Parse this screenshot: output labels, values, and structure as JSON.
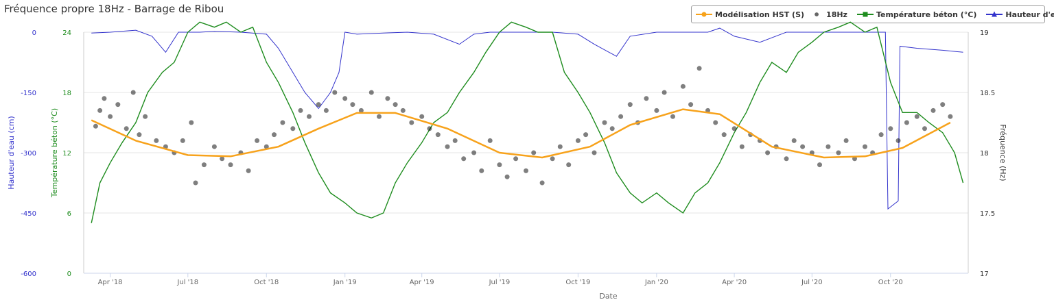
{
  "chart_data": {
    "type": "line",
    "title": "Fréquence propre 18Hz - Barrage de Ribou",
    "xlabel": "Date",
    "x_ticks": [
      "Apr '18",
      "Jul '18",
      "Oct '18",
      "Jan '19",
      "Apr '19",
      "Jul '19",
      "Oct '19",
      "Jan '20",
      "Apr '20",
      "Jul '20",
      "Oct '20"
    ],
    "x_range": [
      "2018-03-01",
      "2020-12-31"
    ],
    "axes": {
      "water": {
        "label": "Hauteur d'eau (cm)",
        "color": "#3333cc",
        "range": [
          -600,
          0
        ],
        "ticks": [
          "0",
          "-150",
          "-300",
          "-450",
          "-600"
        ]
      },
      "temp": {
        "label": "Température béton (°C)",
        "color": "#1e8c1e",
        "range": [
          0,
          24
        ],
        "ticks": [
          "24",
          "18",
          "12",
          "6",
          "0"
        ]
      },
      "freq": {
        "label": "Fréquence (Hz)",
        "color": "#333333",
        "range": [
          17,
          19
        ],
        "ticks": [
          "19",
          "18.5",
          "18",
          "17.5",
          "17"
        ]
      }
    },
    "grid": true,
    "legend_position": "top-right",
    "series": [
      {
        "name": "Modélisation HST (S)",
        "type": "line",
        "axis": "freq",
        "color": "#f7a21b",
        "points": [
          [
            "2018-03-10",
            18.27
          ],
          [
            "2018-05-01",
            18.1
          ],
          [
            "2018-07-01",
            17.98
          ],
          [
            "2018-08-20",
            17.97
          ],
          [
            "2018-10-15",
            18.05
          ],
          [
            "2018-12-01",
            18.2
          ],
          [
            "2019-01-15",
            18.33
          ],
          [
            "2019-03-01",
            18.33
          ],
          [
            "2019-05-01",
            18.2
          ],
          [
            "2019-07-01",
            18.0
          ],
          [
            "2019-08-20",
            17.96
          ],
          [
            "2019-10-15",
            18.05
          ],
          [
            "2019-12-01",
            18.23
          ],
          [
            "2020-02-01",
            18.36
          ],
          [
            "2020-03-15",
            18.32
          ],
          [
            "2020-05-15",
            18.05
          ],
          [
            "2020-07-15",
            17.96
          ],
          [
            "2020-09-01",
            17.97
          ],
          [
            "2020-10-15",
            18.04
          ],
          [
            "2020-12-10",
            18.25
          ]
        ]
      },
      {
        "name": "18Hz",
        "type": "scatter",
        "axis": "freq",
        "color": "#555555",
        "points": [
          [
            "2018-03-15",
            18.22
          ],
          [
            "2018-03-20",
            18.35
          ],
          [
            "2018-03-25",
            18.45
          ],
          [
            "2018-04-01",
            18.3
          ],
          [
            "2018-04-10",
            18.4
          ],
          [
            "2018-04-20",
            18.2
          ],
          [
            "2018-04-28",
            18.5
          ],
          [
            "2018-05-05",
            18.15
          ],
          [
            "2018-05-12",
            18.3
          ],
          [
            "2018-05-25",
            18.1
          ],
          [
            "2018-06-05",
            18.05
          ],
          [
            "2018-06-15",
            18.0
          ],
          [
            "2018-06-25",
            18.1
          ],
          [
            "2018-07-05",
            18.25
          ],
          [
            "2018-07-10",
            17.75
          ],
          [
            "2018-07-20",
            17.9
          ],
          [
            "2018-08-01",
            18.05
          ],
          [
            "2018-08-10",
            17.95
          ],
          [
            "2018-08-20",
            17.9
          ],
          [
            "2018-09-01",
            18.0
          ],
          [
            "2018-09-10",
            17.85
          ],
          [
            "2018-09-20",
            18.1
          ],
          [
            "2018-10-01",
            18.05
          ],
          [
            "2018-10-10",
            18.15
          ],
          [
            "2018-10-20",
            18.25
          ],
          [
            "2018-11-01",
            18.2
          ],
          [
            "2018-11-10",
            18.35
          ],
          [
            "2018-11-20",
            18.3
          ],
          [
            "2018-12-01",
            18.4
          ],
          [
            "2018-12-10",
            18.35
          ],
          [
            "2018-12-20",
            18.5
          ],
          [
            "2019-01-01",
            18.45
          ],
          [
            "2019-01-10",
            18.4
          ],
          [
            "2019-01-20",
            18.35
          ],
          [
            "2019-02-01",
            18.5
          ],
          [
            "2019-02-10",
            18.3
          ],
          [
            "2019-02-20",
            18.45
          ],
          [
            "2019-03-01",
            18.4
          ],
          [
            "2019-03-10",
            18.35
          ],
          [
            "2019-03-20",
            18.25
          ],
          [
            "2019-04-01",
            18.3
          ],
          [
            "2019-04-10",
            18.2
          ],
          [
            "2019-04-20",
            18.15
          ],
          [
            "2019-05-01",
            18.05
          ],
          [
            "2019-05-10",
            18.1
          ],
          [
            "2019-05-20",
            17.95
          ],
          [
            "2019-06-01",
            18.0
          ],
          [
            "2019-06-10",
            17.85
          ],
          [
            "2019-06-20",
            18.1
          ],
          [
            "2019-07-01",
            17.9
          ],
          [
            "2019-07-10",
            17.8
          ],
          [
            "2019-07-20",
            17.95
          ],
          [
            "2019-08-01",
            17.85
          ],
          [
            "2019-08-10",
            18.0
          ],
          [
            "2019-08-20",
            17.75
          ],
          [
            "2019-09-01",
            17.95
          ],
          [
            "2019-09-10",
            18.05
          ],
          [
            "2019-09-20",
            17.9
          ],
          [
            "2019-10-01",
            18.1
          ],
          [
            "2019-10-10",
            18.15
          ],
          [
            "2019-10-20",
            18.0
          ],
          [
            "2019-11-01",
            18.25
          ],
          [
            "2019-11-10",
            18.2
          ],
          [
            "2019-11-20",
            18.3
          ],
          [
            "2019-12-01",
            18.4
          ],
          [
            "2019-12-10",
            18.25
          ],
          [
            "2019-12-20",
            18.45
          ],
          [
            "2020-01-01",
            18.35
          ],
          [
            "2020-01-10",
            18.5
          ],
          [
            "2020-01-20",
            18.3
          ],
          [
            "2020-02-01",
            18.55
          ],
          [
            "2020-02-10",
            18.4
          ],
          [
            "2020-02-20",
            18.7
          ],
          [
            "2020-03-01",
            18.35
          ],
          [
            "2020-03-10",
            18.25
          ],
          [
            "2020-03-20",
            18.15
          ],
          [
            "2020-04-01",
            18.2
          ],
          [
            "2020-04-10",
            18.05
          ],
          [
            "2020-04-20",
            18.15
          ],
          [
            "2020-05-01",
            18.1
          ],
          [
            "2020-05-10",
            18.0
          ],
          [
            "2020-05-20",
            18.05
          ],
          [
            "2020-06-01",
            17.95
          ],
          [
            "2020-06-10",
            18.1
          ],
          [
            "2020-06-20",
            18.05
          ],
          [
            "2020-07-01",
            18.0
          ],
          [
            "2020-07-10",
            17.9
          ],
          [
            "2020-07-20",
            18.05
          ],
          [
            "2020-08-01",
            18.0
          ],
          [
            "2020-08-10",
            18.1
          ],
          [
            "2020-08-20",
            17.95
          ],
          [
            "2020-09-01",
            18.05
          ],
          [
            "2020-09-10",
            18.0
          ],
          [
            "2020-09-20",
            18.15
          ],
          [
            "2020-10-01",
            18.2
          ],
          [
            "2020-10-10",
            18.1
          ],
          [
            "2020-10-20",
            18.25
          ],
          [
            "2020-11-01",
            18.3
          ],
          [
            "2020-11-10",
            18.2
          ],
          [
            "2020-11-20",
            18.35
          ],
          [
            "2020-12-01",
            18.4
          ],
          [
            "2020-12-10",
            18.3
          ]
        ]
      },
      {
        "name": "Température béton (°C)",
        "type": "line",
        "axis": "temp",
        "color": "#1e8c1e",
        "points": [
          [
            "2018-03-10",
            5
          ],
          [
            "2018-03-20",
            9
          ],
          [
            "2018-04-01",
            11
          ],
          [
            "2018-04-15",
            13
          ],
          [
            "2018-05-01",
            15
          ],
          [
            "2018-05-15",
            18
          ],
          [
            "2018-06-01",
            20
          ],
          [
            "2018-06-15",
            21
          ],
          [
            "2018-07-01",
            24
          ],
          [
            "2018-07-15",
            25
          ],
          [
            "2018-08-01",
            24.5
          ],
          [
            "2018-08-15",
            25
          ],
          [
            "2018-09-01",
            24
          ],
          [
            "2018-09-15",
            24.5
          ],
          [
            "2018-10-01",
            21
          ],
          [
            "2018-10-15",
            19
          ],
          [
            "2018-11-01",
            16
          ],
          [
            "2018-11-15",
            13
          ],
          [
            "2018-12-01",
            10
          ],
          [
            "2018-12-15",
            8
          ],
          [
            "2019-01-01",
            7
          ],
          [
            "2019-01-15",
            6
          ],
          [
            "2019-02-01",
            5.5
          ],
          [
            "2019-02-15",
            6
          ],
          [
            "2019-03-01",
            9
          ],
          [
            "2019-03-15",
            11
          ],
          [
            "2019-04-01",
            13
          ],
          [
            "2019-04-15",
            15
          ],
          [
            "2019-05-01",
            16
          ],
          [
            "2019-05-15",
            18
          ],
          [
            "2019-06-01",
            20
          ],
          [
            "2019-06-15",
            22
          ],
          [
            "2019-07-01",
            24
          ],
          [
            "2019-07-15",
            25
          ],
          [
            "2019-08-01",
            24.5
          ],
          [
            "2019-08-15",
            24
          ],
          [
            "2019-09-01",
            24
          ],
          [
            "2019-09-15",
            20
          ],
          [
            "2019-10-01",
            18
          ],
          [
            "2019-10-15",
            16
          ],
          [
            "2019-11-01",
            13
          ],
          [
            "2019-11-15",
            10
          ],
          [
            "2019-12-01",
            8
          ],
          [
            "2019-12-15",
            7
          ],
          [
            "2020-01-01",
            8
          ],
          [
            "2020-01-15",
            7
          ],
          [
            "2020-02-01",
            6
          ],
          [
            "2020-02-15",
            8
          ],
          [
            "2020-03-01",
            9
          ],
          [
            "2020-03-15",
            11
          ],
          [
            "2020-04-01",
            14
          ],
          [
            "2020-04-15",
            16
          ],
          [
            "2020-05-01",
            19
          ],
          [
            "2020-05-15",
            21
          ],
          [
            "2020-06-01",
            20
          ],
          [
            "2020-06-15",
            22
          ],
          [
            "2020-07-01",
            23
          ],
          [
            "2020-07-15",
            24
          ],
          [
            "2020-08-01",
            24.5
          ],
          [
            "2020-08-15",
            25
          ],
          [
            "2020-09-01",
            24
          ],
          [
            "2020-09-15",
            24.5
          ],
          [
            "2020-10-01",
            19
          ],
          [
            "2020-10-15",
            16
          ],
          [
            "2020-11-01",
            16
          ],
          [
            "2020-11-15",
            15
          ],
          [
            "2020-12-01",
            14
          ],
          [
            "2020-12-15",
            12
          ],
          [
            "2020-12-25",
            9
          ]
        ]
      },
      {
        "name": "Hauteur d'eau (cm)",
        "type": "line",
        "axis": "water",
        "color": "#3333cc",
        "points": [
          [
            "2018-03-10",
            -2
          ],
          [
            "2018-04-01",
            0
          ],
          [
            "2018-05-01",
            5
          ],
          [
            "2018-05-20",
            -10
          ],
          [
            "2018-06-05",
            -50
          ],
          [
            "2018-06-20",
            0
          ],
          [
            "2018-07-15",
            0
          ],
          [
            "2018-08-01",
            2
          ],
          [
            "2018-09-01",
            0
          ],
          [
            "2018-10-01",
            -5
          ],
          [
            "2018-10-15",
            -40
          ],
          [
            "2018-11-01",
            -100
          ],
          [
            "2018-11-15",
            -150
          ],
          [
            "2018-12-01",
            -190
          ],
          [
            "2018-12-15",
            -150
          ],
          [
            "2018-12-25",
            -100
          ],
          [
            "2019-01-01",
            0
          ],
          [
            "2019-01-15",
            -5
          ],
          [
            "2019-02-15",
            -2
          ],
          [
            "2019-03-15",
            0
          ],
          [
            "2019-04-15",
            -5
          ],
          [
            "2019-05-15",
            -30
          ],
          [
            "2019-06-01",
            -5
          ],
          [
            "2019-06-20",
            0
          ],
          [
            "2019-08-01",
            0
          ],
          [
            "2019-09-01",
            0
          ],
          [
            "2019-10-01",
            -5
          ],
          [
            "2019-10-20",
            -30
          ],
          [
            "2019-11-15",
            -60
          ],
          [
            "2019-12-01",
            -10
          ],
          [
            "2020-01-01",
            0
          ],
          [
            "2020-02-01",
            0
          ],
          [
            "2020-03-01",
            0
          ],
          [
            "2020-03-15",
            10
          ],
          [
            "2020-04-01",
            -10
          ],
          [
            "2020-05-01",
            -25
          ],
          [
            "2020-06-01",
            0
          ],
          [
            "2020-07-01",
            0
          ],
          [
            "2020-08-01",
            0
          ],
          [
            "2020-09-01",
            0
          ],
          [
            "2020-09-25",
            0
          ],
          [
            "2020-09-28",
            -440
          ],
          [
            "2020-10-10",
            -420
          ],
          [
            "2020-10-12",
            -35
          ],
          [
            "2020-11-01",
            -40
          ],
          [
            "2020-12-01",
            -45
          ],
          [
            "2020-12-25",
            -50
          ]
        ]
      }
    ]
  }
}
